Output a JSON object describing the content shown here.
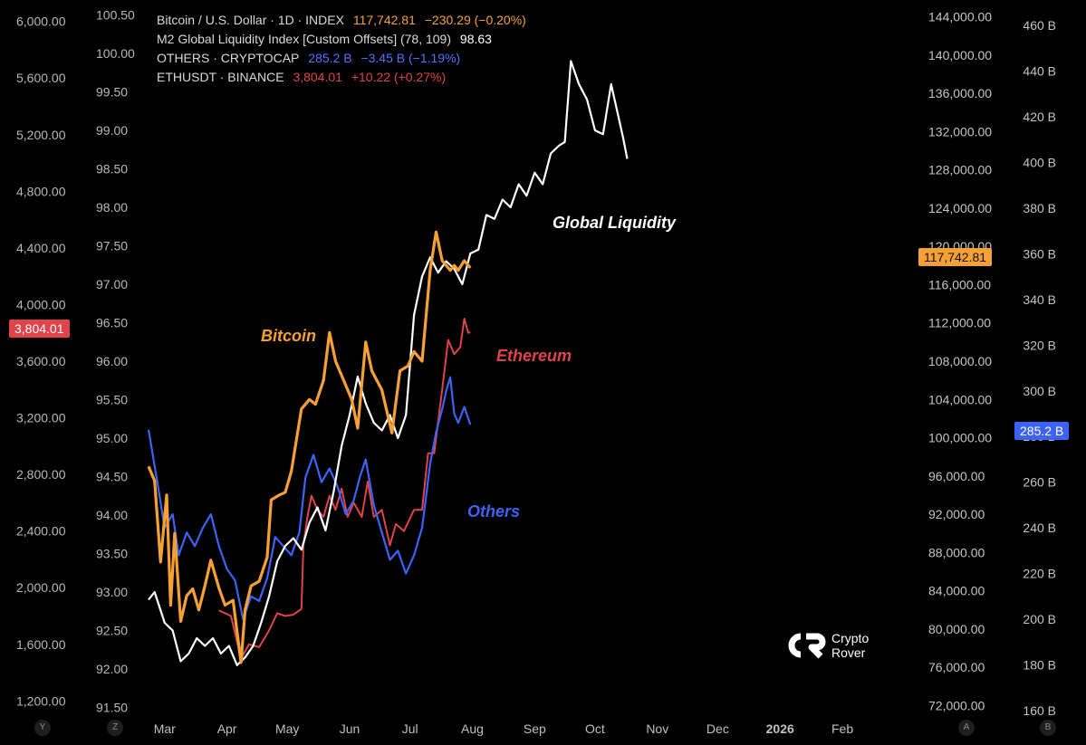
{
  "legend": {
    "btc": {
      "name": "Bitcoin / U.S. Dollar · 1D · INDEX",
      "value": "117,742.81",
      "change": "−230.29 (−0.20%)"
    },
    "m2": {
      "name": "M2 Global Liquidity Index [Custom Offsets] (78, 109)",
      "value": "98.63"
    },
    "others": {
      "name": "OTHERS · CRYPTOCAP",
      "value": "285.2 B",
      "change": "−3.45 B (−1.19%)"
    },
    "eth": {
      "name": "ETHUSDT · BINANCE",
      "value": "3,804.01",
      "change": "+10.22 (+0.27%)"
    }
  },
  "annotations": {
    "bitcoin": "Bitcoin",
    "ethereum": "Ethereum",
    "others": "Others",
    "liquidity": "Global Liquidity"
  },
  "badges": {
    "eth": "3,804.01",
    "btc": "117,742.81",
    "others": "285.2 B"
  },
  "corners": {
    "y": "Y",
    "z": "Z",
    "a": "A",
    "b": "B"
  },
  "logo": {
    "line1": "Crypto",
    "line2": "Rover"
  },
  "colors": {
    "btc": "#f7a035",
    "m2": "#ffffff",
    "others": "#3d63f5",
    "eth": "#e0434a",
    "background": "#000000"
  },
  "chart_data": {
    "type": "line",
    "title": "",
    "axes": {
      "x": {
        "ticks": [
          "Mar",
          "Apr",
          "May",
          "Jun",
          "Jul",
          "Aug",
          "Sep",
          "Oct",
          "Nov",
          "Dec",
          "2026",
          "Feb"
        ],
        "range": [
          "2025-02-21",
          "2026-02-28"
        ]
      },
      "eth_axis": {
        "ticks": [
          "6,000.00",
          "5,600.00",
          "5,200.00",
          "4,800.00",
          "4,400.00",
          "4,000.00",
          "3,600.00",
          "3,200.00",
          "2,800.00",
          "2,400.00",
          "2,000.00",
          "1,600.00",
          "1,200.00"
        ],
        "range": [
          1100,
          6100
        ]
      },
      "m2_axis": {
        "ticks": [
          "100.50",
          "100.00",
          "99.50",
          "99.00",
          "98.50",
          "98.00",
          "97.50",
          "97.00",
          "96.50",
          "96.00",
          "95.50",
          "95.00",
          "94.50",
          "94.00",
          "93.50",
          "93.00",
          "92.50",
          "92.00",
          "91.50"
        ],
        "range": [
          91.4,
          100.6
        ]
      },
      "btc_axis": {
        "ticks": [
          "144,000.00",
          "140,000.00",
          "136,000.00",
          "132,000.00",
          "128,000.00",
          "124,000.00",
          "120,000.00",
          "116,000.00",
          "112,000.00",
          "108,000.00",
          "104,000.00",
          "100,000.00",
          "96,000.00",
          "92,000.00",
          "88,000.00",
          "84,000.00",
          "80,000.00",
          "76,000.00",
          "72,000.00"
        ],
        "range": [
          71000,
          145000
        ]
      },
      "others_axis": {
        "ticks": [
          "460 B",
          "440 B",
          "420 B",
          "400 B",
          "380 B",
          "360 B",
          "340 B",
          "320 B",
          "300 B",
          "280 B",
          "260 B",
          "240 B",
          "220 B",
          "200 B",
          "180 B",
          "160 B"
        ],
        "range": [
          158,
          468
        ]
      }
    },
    "series": [
      {
        "name": "Bitcoin",
        "axis": "btc_axis",
        "points": [
          [
            "2025-02-21",
            97000
          ],
          [
            "2025-02-24",
            95500
          ],
          [
            "2025-02-27",
            87000
          ],
          [
            "2025-03-02",
            94000
          ],
          [
            "2025-03-04",
            82500
          ],
          [
            "2025-03-06",
            90000
          ],
          [
            "2025-03-09",
            80800
          ],
          [
            "2025-03-12",
            83500
          ],
          [
            "2025-03-15",
            84200
          ],
          [
            "2025-03-18",
            82000
          ],
          [
            "2025-03-21",
            84500
          ],
          [
            "2025-03-24",
            87200
          ],
          [
            "2025-03-28",
            84300
          ],
          [
            "2025-03-31",
            82500
          ],
          [
            "2025-04-04",
            83000
          ],
          [
            "2025-04-08",
            76500
          ],
          [
            "2025-04-10",
            82000
          ],
          [
            "2025-04-13",
            84500
          ],
          [
            "2025-04-17",
            85000
          ],
          [
            "2025-04-21",
            87500
          ],
          [
            "2025-04-23",
            93500
          ],
          [
            "2025-04-27",
            94000
          ],
          [
            "2025-04-30",
            94300
          ],
          [
            "2025-05-03",
            96500
          ],
          [
            "2025-05-08",
            103000
          ],
          [
            "2025-05-12",
            104000
          ],
          [
            "2025-05-15",
            103500
          ],
          [
            "2025-05-19",
            106000
          ],
          [
            "2025-05-22",
            111000
          ],
          [
            "2025-05-25",
            108000
          ],
          [
            "2025-05-29",
            106000
          ],
          [
            "2025-06-02",
            104000
          ],
          [
            "2025-06-05",
            101000
          ],
          [
            "2025-06-09",
            110000
          ],
          [
            "2025-06-12",
            107000
          ],
          [
            "2025-06-17",
            105000
          ],
          [
            "2025-06-22",
            100500
          ],
          [
            "2025-06-26",
            107000
          ],
          [
            "2025-06-30",
            107500
          ],
          [
            "2025-07-03",
            109000
          ],
          [
            "2025-07-07",
            108000
          ],
          [
            "2025-07-11",
            117500
          ],
          [
            "2025-07-14",
            121500
          ],
          [
            "2025-07-17",
            118500
          ],
          [
            "2025-07-21",
            117500
          ],
          [
            "2025-07-23",
            118000
          ],
          [
            "2025-07-25",
            117500
          ],
          [
            "2025-07-28",
            118500
          ],
          [
            "2025-07-31",
            117742.81
          ]
        ]
      },
      {
        "name": "Ethereum",
        "axis": "eth_axis",
        "points": [
          [
            "2025-03-28",
            1840
          ],
          [
            "2025-04-03",
            1800
          ],
          [
            "2025-04-08",
            1500
          ],
          [
            "2025-04-12",
            1600
          ],
          [
            "2025-04-17",
            1580
          ],
          [
            "2025-04-22",
            1700
          ],
          [
            "2025-04-26",
            1820
          ],
          [
            "2025-04-30",
            1800
          ],
          [
            "2025-05-04",
            1810
          ],
          [
            "2025-05-08",
            1850
          ],
          [
            "2025-05-09",
            2300
          ],
          [
            "2025-05-11",
            2500
          ],
          [
            "2025-05-13",
            2650
          ],
          [
            "2025-05-16",
            2550
          ],
          [
            "2025-05-19",
            2500
          ],
          [
            "2025-05-22",
            2650
          ],
          [
            "2025-05-25",
            2550
          ],
          [
            "2025-05-28",
            2700
          ],
          [
            "2025-05-31",
            2500
          ],
          [
            "2025-06-03",
            2600
          ],
          [
            "2025-06-07",
            2500
          ],
          [
            "2025-06-10",
            2750
          ],
          [
            "2025-06-13",
            2500
          ],
          [
            "2025-06-17",
            2550
          ],
          [
            "2025-06-21",
            2300
          ],
          [
            "2025-06-24",
            2450
          ],
          [
            "2025-06-28",
            2400
          ],
          [
            "2025-07-03",
            2550
          ],
          [
            "2025-07-07",
            2550
          ],
          [
            "2025-07-10",
            2950
          ],
          [
            "2025-07-13",
            2950
          ],
          [
            "2025-07-17",
            3400
          ],
          [
            "2025-07-20",
            3750
          ],
          [
            "2025-07-23",
            3650
          ],
          [
            "2025-07-26",
            3700
          ],
          [
            "2025-07-28",
            3900
          ],
          [
            "2025-07-30",
            3800
          ],
          [
            "2025-07-31",
            3804.01
          ]
        ]
      },
      {
        "name": "Others",
        "axis": "others_axis",
        "points": [
          [
            "2025-02-21",
            283
          ],
          [
            "2025-02-25",
            262
          ],
          [
            "2025-03-01",
            240
          ],
          [
            "2025-03-05",
            246
          ],
          [
            "2025-03-08",
            228
          ],
          [
            "2025-03-12",
            238
          ],
          [
            "2025-03-16",
            232
          ],
          [
            "2025-03-20",
            240
          ],
          [
            "2025-03-24",
            246
          ],
          [
            "2025-03-28",
            232
          ],
          [
            "2025-04-01",
            222
          ],
          [
            "2025-04-05",
            217
          ],
          [
            "2025-04-09",
            200
          ],
          [
            "2025-04-13",
            210
          ],
          [
            "2025-04-17",
            208
          ],
          [
            "2025-04-21",
            218
          ],
          [
            "2025-04-25",
            236
          ],
          [
            "2025-04-29",
            232
          ],
          [
            "2025-05-03",
            228
          ],
          [
            "2025-05-07",
            238
          ],
          [
            "2025-05-10",
            262
          ],
          [
            "2025-05-14",
            272
          ],
          [
            "2025-05-18",
            260
          ],
          [
            "2025-05-22",
            266
          ],
          [
            "2025-05-26",
            258
          ],
          [
            "2025-05-30",
            246
          ],
          [
            "2025-06-03",
            252
          ],
          [
            "2025-06-06",
            262
          ],
          [
            "2025-06-09",
            270
          ],
          [
            "2025-06-13",
            250
          ],
          [
            "2025-06-17",
            238
          ],
          [
            "2025-06-21",
            226
          ],
          [
            "2025-06-25",
            230
          ],
          [
            "2025-06-29",
            220
          ],
          [
            "2025-07-03",
            228
          ],
          [
            "2025-07-07",
            240
          ],
          [
            "2025-07-11",
            268
          ],
          [
            "2025-07-14",
            282
          ],
          [
            "2025-07-17",
            292
          ],
          [
            "2025-07-19",
            300
          ],
          [
            "2025-07-21",
            306
          ],
          [
            "2025-07-23",
            290
          ],
          [
            "2025-07-25",
            286
          ],
          [
            "2025-07-28",
            293
          ],
          [
            "2025-07-31",
            285.2
          ]
        ]
      },
      {
        "name": "Global Liquidity",
        "axis": "m2_axis",
        "points": [
          [
            "2025-02-21",
            92.9
          ],
          [
            "2025-02-24",
            93.0
          ],
          [
            "2025-03-01",
            92.6
          ],
          [
            "2025-03-05",
            92.5
          ],
          [
            "2025-03-09",
            92.1
          ],
          [
            "2025-03-13",
            92.2
          ],
          [
            "2025-03-17",
            92.4
          ],
          [
            "2025-03-21",
            92.3
          ],
          [
            "2025-03-25",
            92.4
          ],
          [
            "2025-03-29",
            92.2
          ],
          [
            "2025-04-02",
            92.3
          ],
          [
            "2025-04-06",
            92.05
          ],
          [
            "2025-04-10",
            92.15
          ],
          [
            "2025-04-14",
            92.3
          ],
          [
            "2025-04-18",
            92.6
          ],
          [
            "2025-04-22",
            92.95
          ],
          [
            "2025-04-26",
            93.4
          ],
          [
            "2025-04-30",
            93.6
          ],
          [
            "2025-05-04",
            93.7
          ],
          [
            "2025-05-08",
            93.55
          ],
          [
            "2025-05-12",
            93.9
          ],
          [
            "2025-05-16",
            94.1
          ],
          [
            "2025-05-20",
            93.8
          ],
          [
            "2025-05-24",
            94.3
          ],
          [
            "2025-05-28",
            94.9
          ],
          [
            "2025-06-01",
            95.3
          ],
          [
            "2025-06-05",
            95.8
          ],
          [
            "2025-06-09",
            95.45
          ],
          [
            "2025-06-13",
            95.2
          ],
          [
            "2025-06-17",
            95.1
          ],
          [
            "2025-06-21",
            95.3
          ],
          [
            "2025-06-25",
            95.0
          ],
          [
            "2025-06-29",
            95.3
          ],
          [
            "2025-07-03",
            96.6
          ],
          [
            "2025-07-07",
            97.1
          ],
          [
            "2025-07-11",
            97.35
          ],
          [
            "2025-07-15",
            97.15
          ],
          [
            "2025-07-19",
            97.3
          ],
          [
            "2025-07-23",
            97.2
          ],
          [
            "2025-07-27",
            97.0
          ],
          [
            "2025-07-31",
            97.4
          ],
          [
            "2025-08-04",
            97.45
          ],
          [
            "2025-08-08",
            97.9
          ],
          [
            "2025-08-12",
            97.85
          ],
          [
            "2025-08-16",
            98.1
          ],
          [
            "2025-08-20",
            98.0
          ],
          [
            "2025-08-24",
            98.3
          ],
          [
            "2025-08-28",
            98.15
          ],
          [
            "2025-09-01",
            98.45
          ],
          [
            "2025-09-05",
            98.3
          ],
          [
            "2025-09-09",
            98.7
          ],
          [
            "2025-09-13",
            98.8
          ],
          [
            "2025-09-16",
            98.85
          ],
          [
            "2025-09-19",
            99.9
          ],
          [
            "2025-09-23",
            99.6
          ],
          [
            "2025-09-27",
            99.4
          ],
          [
            "2025-10-01",
            99.0
          ],
          [
            "2025-10-05",
            98.95
          ],
          [
            "2025-10-09",
            99.6
          ],
          [
            "2025-10-12",
            99.25
          ],
          [
            "2025-10-15",
            98.9
          ],
          [
            "2025-10-17",
            98.63
          ]
        ]
      }
    ],
    "grid": false,
    "legend": "top-left"
  }
}
